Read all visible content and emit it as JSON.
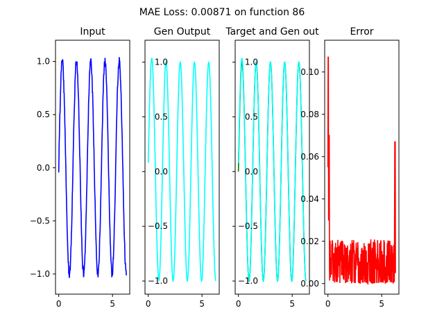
{
  "suptitle": "MAE  Loss: 0.00871 on function 86",
  "colors": {
    "input": "#0000ff",
    "gen": "#00ffff",
    "target": "#008000",
    "error": "#ff0000",
    "axes": "#000000"
  },
  "chart_data": [
    {
      "type": "line",
      "title": "Input",
      "xlim": [
        -0.3,
        6.6
      ],
      "ylim": [
        -1.19,
        1.2
      ],
      "xticks": [
        0,
        5
      ],
      "yticks": [
        -1.0,
        -0.5,
        0.0,
        0.5,
        1.0
      ],
      "ytick_labels": [
        "−1.0",
        "−0.5",
        "0.0",
        "0.5",
        "1.0"
      ],
      "series": [
        {
          "name": "input",
          "color_key": "input",
          "kind": "noisy_sine",
          "x_start": 0.0,
          "x_end": 6.28,
          "points": 300,
          "amplitude": 1.0,
          "frequency": 4.75,
          "phase": 0.0,
          "noise": 0.045
        }
      ]
    },
    {
      "type": "line",
      "title": "Gen Output",
      "xlim": [
        -0.3,
        6.6
      ],
      "ylim": [
        -1.12,
        1.2
      ],
      "xticks": [
        0,
        5
      ],
      "yticks": [
        -1.0,
        -0.5,
        0.0,
        0.5,
        1.0
      ],
      "ytick_labels": [
        "−1.0",
        "−0.5",
        "0.0",
        "0.5",
        "1.0"
      ],
      "series": [
        {
          "name": "gen",
          "color_key": "gen",
          "kind": "sine",
          "x_start": 0.0,
          "x_end": 6.28,
          "points": 300,
          "amplitude": 1.0,
          "frequency": 4.75,
          "phase": 0.0,
          "offset": 0.08
        }
      ]
    },
    {
      "type": "line",
      "title": "Target and Gen out",
      "xlim": [
        -0.3,
        6.6
      ],
      "ylim": [
        -1.12,
        1.2
      ],
      "xticks": [
        0,
        5
      ],
      "yticks": [
        -1.0,
        -0.5,
        0.0,
        0.5,
        1.0
      ],
      "ytick_labels": [
        "−1.0",
        "−0.5",
        "0.0",
        "0.5",
        "1.0"
      ],
      "series": [
        {
          "name": "target",
          "color_key": "target",
          "kind": "sine",
          "x_start": 0.0,
          "x_end": 6.28,
          "points": 300,
          "amplitude": 1.0,
          "frequency": 4.75,
          "phase": 0.0,
          "offset": 0.0
        },
        {
          "name": "gen",
          "color_key": "gen",
          "kind": "sine",
          "x_start": 0.0,
          "x_end": 6.28,
          "points": 300,
          "amplitude": 1.0,
          "frequency": 4.75,
          "phase": 0.0,
          "offset": 0.08
        }
      ]
    },
    {
      "type": "line",
      "title": "Error",
      "xlim": [
        -0.3,
        6.6
      ],
      "ylim": [
        -0.005,
        0.115
      ],
      "xticks": [
        0,
        5
      ],
      "yticks": [
        0.0,
        0.02,
        0.04,
        0.06,
        0.08,
        0.1
      ],
      "ytick_labels": [
        "0.00",
        "0.02",
        "0.04",
        "0.06",
        "0.08",
        "0.10"
      ],
      "series": [
        {
          "name": "error",
          "color_key": "error",
          "kind": "noise_error",
          "x_start": 0.0,
          "x_end": 6.28,
          "points": 300,
          "base": 0.009,
          "spread": 0.012,
          "spikes": [
            [
              0.0,
              0.055
            ],
            [
              0.04,
              0.107
            ],
            [
              0.08,
              0.03
            ],
            [
              0.12,
              0.07
            ],
            [
              0.2,
              0.02
            ],
            [
              6.2,
              0.03
            ],
            [
              6.24,
              0.067
            ]
          ]
        }
      ]
    }
  ]
}
